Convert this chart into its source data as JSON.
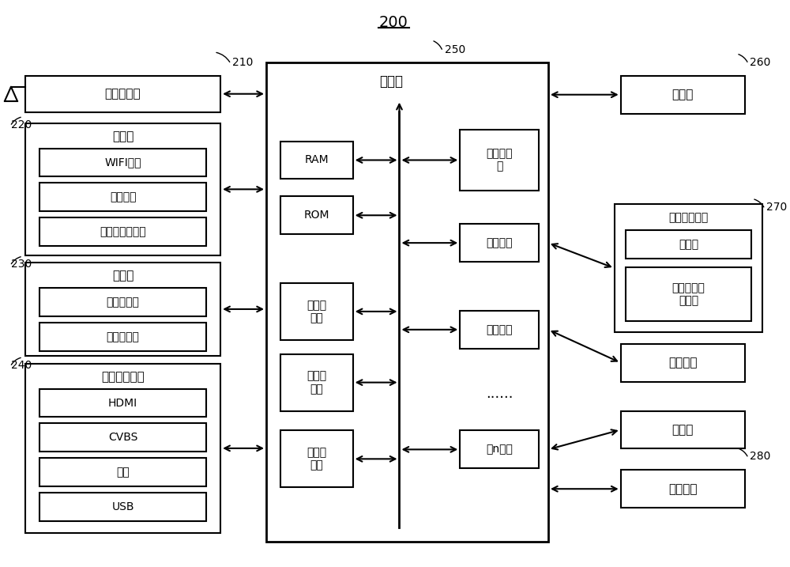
{
  "title": "200",
  "background_color": "#ffffff",
  "line_color": "#000000",
  "box_color": "#ffffff",
  "font_color": "#000000",
  "font_size": 11,
  "small_font_size": 10,
  "labels_210": [
    "调谐解调器"
  ],
  "labels_220": [
    "通信器",
    "WIFI模块",
    "蓝牙模块",
    "有线以太网模块"
  ],
  "labels_230": [
    "检测器",
    "声音采集器",
    "图像采集器"
  ],
  "labels_240": [
    "外部装置接口",
    "HDMI",
    "CVBS",
    "分量",
    "USB"
  ],
  "label_250": "控制器",
  "labels_250_left": [
    "RAM",
    "ROM",
    "视频处\n理器",
    "图形处\n理器",
    "音频处\n理器"
  ],
  "labels_250_right": [
    "中央处理\n器",
    "第一接口",
    "第二接口",
    "第n接口"
  ],
  "label_260": "显示器",
  "labels_270": [
    "音频输出接口",
    "扬声器",
    "外接音响输\n出端子"
  ],
  "label_power": "供电电源",
  "label_storage": "存储器",
  "label_user": "用户接口",
  "ref_210": "210",
  "ref_220": "220",
  "ref_230": "230",
  "ref_240": "240",
  "ref_250": "250",
  "ref_260": "260",
  "ref_270": "270",
  "ref_280": "280"
}
